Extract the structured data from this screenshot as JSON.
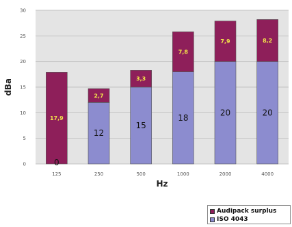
{
  "chart_data": {
    "type": "bar",
    "stacked": true,
    "categories": [
      "125",
      "250",
      "500",
      "1000",
      "2000",
      "4000"
    ],
    "series": [
      {
        "name": "ISO 4043",
        "values": [
          0,
          12,
          15,
          18,
          20,
          20
        ],
        "labels": [
          "0",
          "12",
          "15",
          "18",
          "20",
          "20"
        ],
        "color": "#8c8ccf"
      },
      {
        "name": "Audipack surplus",
        "values": [
          17.9,
          2.7,
          3.3,
          7.8,
          7.9,
          8.2
        ],
        "labels": [
          "17,9",
          "2,7",
          "3,3",
          "7,8",
          "7,9",
          "8,2"
        ],
        "color": "#8e1f5a"
      }
    ],
    "xlabel": "Hz",
    "ylabel": "dBa",
    "ylim": [
      0,
      30
    ],
    "yticks": [
      "0",
      "5",
      "10",
      "15",
      "20",
      "25",
      "30"
    ],
    "grid": true,
    "legend": "bottom-right",
    "plot_background": "#e4e4e4"
  }
}
